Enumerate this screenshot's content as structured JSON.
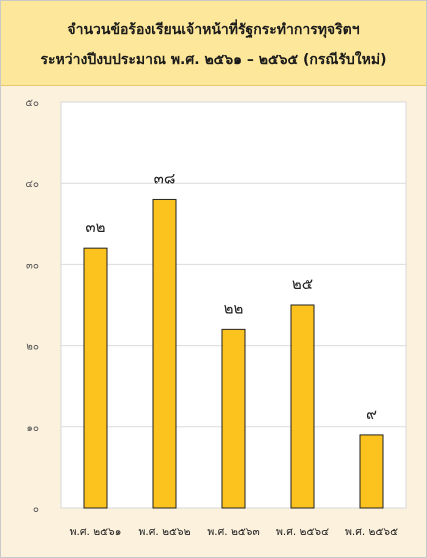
{
  "chart_data": {
    "type": "bar",
    "title": "จำนวนข้อร้องเรียนเจ้าหน้าที่รัฐกระทำการทุจริตฯ",
    "subtitle": "ระหว่างปีงบประมาณ พ.ศ. ๒๕๖๑ – ๒๕๖๕ (กรณีรับใหม่)",
    "categories": [
      "พ.ศ. ๒๕๖๑",
      "พ.ศ. ๒๕๖๒",
      "พ.ศ. ๒๕๖๓",
      "พ.ศ. ๒๕๖๔",
      "พ.ศ. ๒๕๖๕"
    ],
    "values": [
      32,
      38,
      22,
      25,
      9
    ],
    "data_labels": [
      "๓๒",
      "๓๘",
      "๒๒",
      "๒๕",
      "๙"
    ],
    "ylim": [
      0,
      50
    ],
    "yticks": [
      0,
      10,
      20,
      30,
      40,
      50
    ],
    "ytick_labels": [
      "๐",
      "๑๐",
      "๒๐",
      "๓๐",
      "๔๐",
      "๕๐"
    ],
    "xlabel": "",
    "ylabel": "",
    "grid": true,
    "legend": "none",
    "bar_color": "#fcc31e",
    "bar_edge_color": "#222222",
    "title_background": "#fde79a",
    "plot_background": "#ffffff",
    "page_background": "#fcf1dd"
  }
}
